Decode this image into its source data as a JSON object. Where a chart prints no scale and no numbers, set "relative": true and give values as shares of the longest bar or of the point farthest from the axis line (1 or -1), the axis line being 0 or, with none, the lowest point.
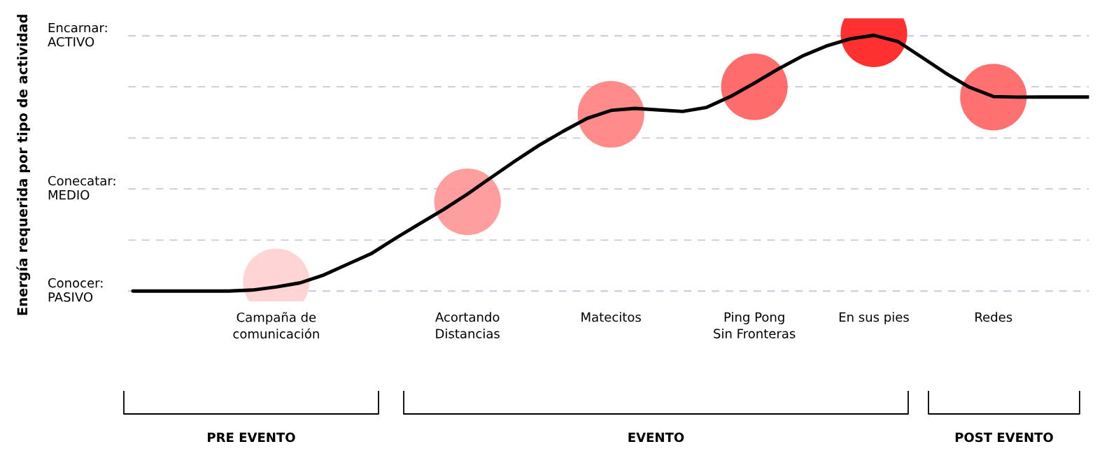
{
  "chart_data": {
    "type": "line",
    "relative": true,
    "categories": [
      null,
      null,
      null,
      null,
      null,
      null,
      "Campaña de\ncomunicación",
      null,
      null,
      null,
      null,
      null,
      null,
      null,
      "Acortando\nDistancias",
      null,
      null,
      null,
      null,
      null,
      "Matecitos",
      null,
      null,
      null,
      null,
      null,
      "Ping Pong\nSin Fronteras",
      null,
      null,
      null,
      null,
      "En sus pies",
      null,
      null,
      null,
      null,
      "Redes",
      null,
      null,
      null,
      null
    ],
    "series": [
      {
        "color": "#000000",
        "marker": "none",
        "line_style": "solid",
        "values": [
          0,
          0,
          0,
          0,
          0,
          0.004,
          0.016,
          0.032,
          0.063,
          0.105,
          0.147,
          0.206,
          0.262,
          0.317,
          0.377,
          0.442,
          0.506,
          0.567,
          0.621,
          0.671,
          0.702,
          0.71,
          0.704,
          0.698,
          0.714,
          0.756,
          0.808,
          0.863,
          0.913,
          0.952,
          0.98,
          0.994,
          0.97,
          0.909,
          0.847,
          0.792,
          0.756,
          0.754,
          0.754,
          0.754,
          0.754
        ]
      },
      {
        "type": "scatter",
        "marker": "circle",
        "values": [
          null,
          null,
          null,
          null,
          null,
          null,
          0.036,
          null,
          null,
          null,
          null,
          null,
          null,
          null,
          0.347,
          null,
          null,
          null,
          null,
          null,
          0.687,
          null,
          null,
          null,
          null,
          null,
          0.794,
          null,
          null,
          null,
          null,
          1,
          null,
          null,
          null,
          null,
          0.754,
          null,
          null,
          null,
          null
        ],
        "colors": [
          null,
          null,
          null,
          null,
          null,
          null,
          "#ffcfcf",
          null,
          null,
          null,
          null,
          null,
          null,
          null,
          "#ff9494",
          null,
          null,
          null,
          null,
          null,
          "#ff7e7e",
          null,
          null,
          null,
          null,
          null,
          "#ff5c5c",
          null,
          null,
          null,
          null,
          "#ff1a1a",
          null,
          null,
          null,
          null,
          "#ff6060",
          null,
          null,
          null,
          null
        ]
      }
    ],
    "ref_lines": [
      {
        "axis": "y",
        "value": 0,
        "label": "Conocer:\nPASIVO",
        "color": "#c9c7dd",
        "line_style": "dashed"
      },
      {
        "axis": "y",
        "value": 0.198,
        "color": "#c9c7dd",
        "line_style": "dashed"
      },
      {
        "axis": "y",
        "value": 0.397,
        "label": "Conecatar:\nMEDIO",
        "color": "#c9c7dd",
        "line_style": "dashed"
      },
      {
        "axis": "y",
        "value": 0.595,
        "color": "#c9c7dd",
        "line_style": "dashed"
      },
      {
        "axis": "y",
        "value": 0.794,
        "color": "#c9c7dd",
        "line_style": "dashed"
      },
      {
        "axis": "y",
        "value": 0.992,
        "label": "Encarnar:\nACTIVO",
        "color": "#c9c7dd",
        "line_style": "dashed"
      }
    ],
    "annotations": [
      "Energía requerida por tipo de actividad",
      "PRE EVENTO",
      "EVENTO",
      "POST EVENTO"
    ]
  }
}
